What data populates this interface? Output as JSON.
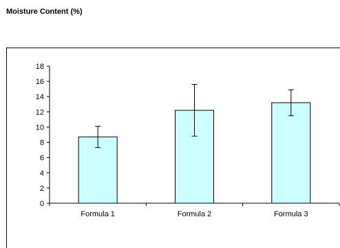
{
  "title": "Moisture Content (%)",
  "chart_data": {
    "type": "bar",
    "categories": [
      "Formula 1",
      "Formula 2",
      "Formula 3"
    ],
    "values": [
      8.7,
      12.2,
      13.2
    ],
    "error": [
      1.4,
      3.4,
      1.7
    ],
    "ylim": [
      0,
      18
    ],
    "yticks": [
      0,
      2,
      4,
      6,
      8,
      10,
      12,
      14,
      16,
      18
    ],
    "xlabel": "",
    "ylabel": "",
    "grid": false,
    "legend": "none",
    "colors": {
      "bar_fill": "#ccffff",
      "bar_stroke": "#000000",
      "axis": "#000000",
      "error_bar": "#000000"
    }
  }
}
